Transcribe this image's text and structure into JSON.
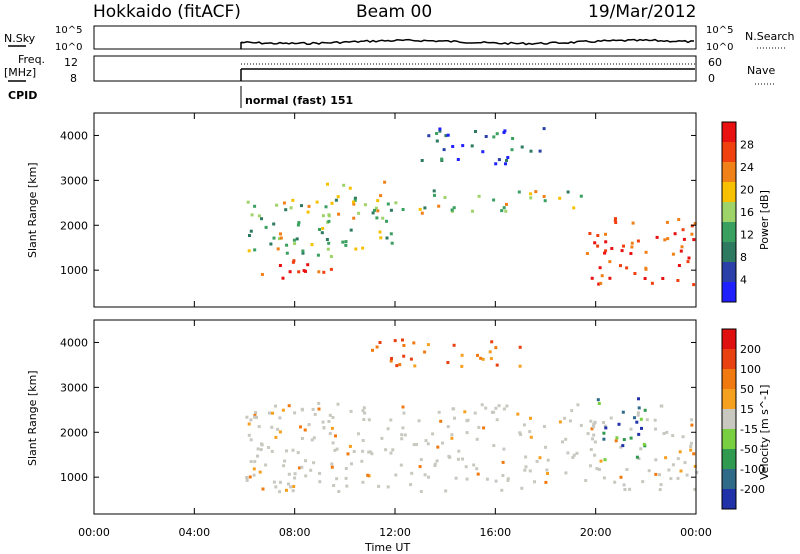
{
  "header": {
    "site": "Hokkaido (fitACF)",
    "beam": "Beam 00",
    "date": "19/Mar/2012"
  },
  "panels": {
    "nsky": {
      "left_label": "N.Sky",
      "left_ticks": [
        "10^5",
        "10^0"
      ],
      "right_ticks": [
        "10^5",
        "10^0"
      ],
      "right_label": "N.Search"
    },
    "freq": {
      "left_label_1": "Freq.",
      "left_label_2": "[MHz]",
      "left_ticks": [
        "12",
        "8"
      ],
      "right_ticks": [
        "60",
        "0"
      ],
      "right_label": "Nave"
    },
    "cpid": {
      "label": "CPID",
      "mode": "normal (fast) 151"
    }
  },
  "colors": {
    "power_scale": [
      "#1f1fff",
      "#2a3fa8",
      "#2e7a60",
      "#3aa060",
      "#9ed36a",
      "#f7c000",
      "#f08018",
      "#f04010",
      "#e81010"
    ],
    "velocity_scale": [
      "#2131a8",
      "#2f6a88",
      "#2f9a50",
      "#78d040",
      "#c8c8c0",
      "#f6a020",
      "#f07a10",
      "#e84010",
      "#e00f0f"
    ]
  },
  "chart_data": [
    {
      "type": "heatmap",
      "panel": "power",
      "xlabel": "",
      "ylabel": "Slant Range [km]",
      "ylim": [
        180,
        4500
      ],
      "yticks": [
        1000,
        2000,
        3000,
        4000
      ],
      "xlim": [
        0,
        24
      ],
      "colorbar": {
        "label": "Power [dB]",
        "ticks": [
          "28",
          "24",
          "20",
          "16",
          "12",
          "8",
          "4"
        ],
        "range": [
          0,
          32
        ]
      },
      "data_start_hour": 6.0,
      "bands": [
        {
          "t0": 6.0,
          "t1": 9.5,
          "r0": 800,
          "r1": 1250,
          "level": "high"
        },
        {
          "t0": 6.0,
          "t1": 10.0,
          "r0": 1300,
          "r1": 2600,
          "level": "medium"
        },
        {
          "t0": 9.0,
          "t1": 12.0,
          "r0": 1500,
          "r1": 3000,
          "level": "medium"
        },
        {
          "t0": 11.0,
          "t1": 19.5,
          "r0": 2300,
          "r1": 2800,
          "level": "medium"
        },
        {
          "t0": 13.0,
          "t1": 18.0,
          "r0": 3400,
          "r1": 4200,
          "level": "low"
        },
        {
          "t0": 19.5,
          "t1": 24.0,
          "r0": 700,
          "r1": 2200,
          "level": "high"
        }
      ]
    },
    {
      "type": "heatmap",
      "panel": "velocity",
      "xlabel": "Time UT",
      "ylabel": "Slant Range [km]",
      "ylim": [
        180,
        4500
      ],
      "yticks": [
        1000,
        2000,
        3000,
        4000
      ],
      "xlim": [
        0,
        24
      ],
      "xticks": [
        "00:00",
        "04:00",
        "08:00",
        "12:00",
        "16:00",
        "20:00",
        "00:00"
      ],
      "colorbar": {
        "label": "Velocity [m s^-1]",
        "ticks": [
          "200",
          "100",
          "50",
          "15",
          "-15",
          "-50",
          "-100",
          "-200"
        ],
        "range": [
          -250,
          250
        ]
      },
      "data_start_hour": 6.0,
      "bands": [
        {
          "t0": 6.0,
          "t1": 24.0,
          "r0": 700,
          "r1": 2700,
          "level": "ground"
        },
        {
          "t0": 11.0,
          "t1": 17.0,
          "r0": 3500,
          "r1": 4100,
          "level": "away"
        },
        {
          "t0": 20.0,
          "t1": 22.0,
          "r0": 1400,
          "r1": 2800,
          "level": "toward"
        }
      ]
    }
  ]
}
